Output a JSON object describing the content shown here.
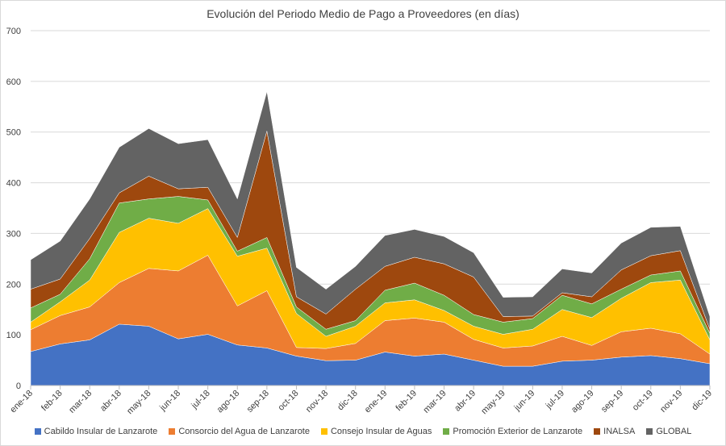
{
  "chart_data": {
    "type": "area",
    "stacked": true,
    "title": "Evolución del Periodo Medio de Pago a Proveedores (en días)",
    "xlabel": "",
    "ylabel": "",
    "ylim": [
      0,
      700
    ],
    "yticks": [
      "0",
      "100",
      "200",
      "300",
      "400",
      "500",
      "600",
      "700"
    ],
    "grid": true,
    "legend_position": "bottom",
    "categories": [
      "ene-18",
      "feb-18",
      "mar-18",
      "abr-18",
      "may-18",
      "jun-18",
      "jul-18",
      "ago-18",
      "sep-18",
      "oct-18",
      "nov-18",
      "dic-18",
      "ene-19",
      "feb-19",
      "mar-19",
      "abr-19",
      "may-19",
      "jun-19",
      "jul-19",
      "ago-19",
      "sep-19",
      "oct-19",
      "nov-19",
      "dic-19"
    ],
    "series": [
      {
        "name": "Cabildo Insular de Lanzarote",
        "color": "#4472c4",
        "values": [
          67,
          82,
          90,
          121,
          117,
          92,
          101,
          80,
          74,
          58,
          49,
          50,
          66,
          58,
          62,
          50,
          38,
          38,
          48,
          50,
          56,
          59,
          53,
          43
        ]
      },
      {
        "name": "Consorcio del Agua de Lanzarote",
        "color": "#ed7d31",
        "values": [
          43,
          56,
          65,
          82,
          114,
          134,
          156,
          77,
          113,
          17,
          24,
          33,
          62,
          75,
          63,
          41,
          36,
          40,
          49,
          29,
          50,
          54,
          49,
          19
        ]
      },
      {
        "name": "Consejo Insular de Aguas",
        "color": "#ffc000",
        "values": [
          15,
          27,
          53,
          99,
          99,
          94,
          92,
          98,
          84,
          67,
          24,
          34,
          35,
          36,
          23,
          26,
          27,
          33,
          53,
          55,
          66,
          90,
          106,
          28
        ]
      },
      {
        "name": "Promoción Exterior de Lanzarote",
        "color": "#70ad47",
        "values": [
          28,
          15,
          42,
          58,
          38,
          53,
          17,
          10,
          21,
          13,
          14,
          11,
          25,
          33,
          30,
          23,
          24,
          21,
          28,
          27,
          18,
          15,
          18,
          13
        ]
      },
      {
        "name": "INALSA",
        "color": "#9e480e",
        "values": [
          37,
          30,
          40,
          20,
          45,
          15,
          25,
          27,
          210,
          20,
          30,
          62,
          47,
          51,
          62,
          74,
          11,
          5,
          5,
          14,
          38,
          38,
          40,
          8
        ]
      },
      {
        "name": "GLOBAL",
        "color": "#636363",
        "values": [
          58,
          75,
          78,
          90,
          94,
          89,
          94,
          76,
          78,
          58,
          49,
          45,
          61,
          55,
          54,
          48,
          38,
          38,
          47,
          47,
          53,
          56,
          48,
          25
        ]
      }
    ]
  }
}
